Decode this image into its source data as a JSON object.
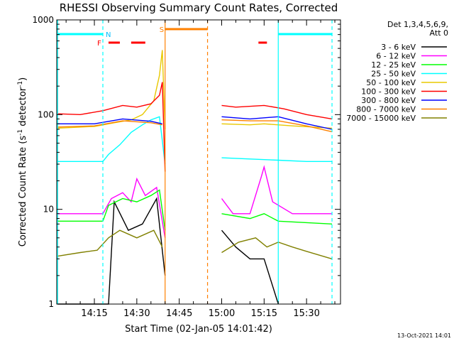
{
  "chart_data": {
    "type": "line",
    "title": "RHESSI Observing Summary Count Rates, Corrected",
    "xlabel": "Start Time (02-Jan-05 14:01:42)",
    "ylabel": "Corrected Count Rate (s⁻¹ detector⁻¹)",
    "ylabel_main": "Corrected Count Rate (s",
    "ylabel_sup1": "-1",
    "ylabel_mid": " detector",
    "ylabel_sup2": "-1",
    "ylabel_end": ")",
    "footer": "13-Oct-2021 14:01",
    "yscale": "log",
    "ylim": [
      1,
      1000
    ],
    "xlim": [
      "14:01:42",
      "15:42:00"
    ],
    "x_ticks": [
      "14:15",
      "14:30",
      "14:45",
      "15:00",
      "15:15",
      "15:30"
    ],
    "y_ticks": [
      "1",
      "10",
      "100",
      "1000"
    ],
    "legend_header": [
      "Det 1,3,4,5,6,9,",
      "Att 0"
    ],
    "legend_placement": "top-right",
    "grid": false,
    "gaps": [
      [
        "14:40",
        "15:00"
      ]
    ],
    "series": [
      {
        "name": "3 - 6 keV",
        "color": "#000000",
        "x": [
          "14:02",
          "14:20",
          "14:22",
          "14:27",
          "14:32",
          "14:37",
          "14:40",
          "15:00",
          "15:05",
          "15:10",
          "15:15",
          "15:20"
        ],
        "y": [
          0,
          0,
          12,
          6,
          7,
          13,
          2,
          6,
          4,
          3,
          3,
          0
        ]
      },
      {
        "name": "6 - 12 keV",
        "color": "#ff00ff",
        "x": [
          "14:02",
          "14:18",
          "14:21",
          "14:25",
          "14:28",
          "14:30",
          "14:33",
          "14:37",
          "14:40",
          "15:00",
          "15:04",
          "15:10",
          "15:14",
          "15:15",
          "15:18",
          "15:25",
          "15:39"
        ],
        "y": [
          9,
          9,
          13,
          15,
          12,
          21,
          14,
          17,
          5,
          13,
          9,
          9,
          22,
          28,
          12,
          9,
          9
        ]
      },
      {
        "name": "12 - 25 keV",
        "color": "#00ff00",
        "x": [
          "14:02",
          "14:18",
          "14:20",
          "14:25",
          "14:30",
          "14:35",
          "14:38",
          "14:40",
          "15:00",
          "15:10",
          "15:15",
          "15:20",
          "15:39"
        ],
        "y": [
          7.5,
          7.5,
          11,
          13,
          12,
          14,
          16,
          6,
          9,
          8,
          9,
          7.5,
          7
        ]
      },
      {
        "name": "25 - 50 keV",
        "color": "#00ffff",
        "x": [
          "14:02",
          "14:18",
          "14:20",
          "14:24",
          "14:28",
          "14:32",
          "14:35",
          "14:38",
          "14:40",
          "15:00",
          "15:10",
          "15:20",
          "15:30",
          "15:39"
        ],
        "y": [
          32,
          32,
          38,
          48,
          65,
          78,
          88,
          95,
          30,
          35,
          34,
          33,
          32,
          32
        ]
      },
      {
        "name": "50 - 100 keV",
        "color": "#e8c800",
        "x": [
          "14:02",
          "14:15",
          "14:22",
          "14:28",
          "14:32",
          "14:36",
          "14:38",
          "14:39",
          "14:40",
          "15:00",
          "15:10",
          "15:15",
          "15:25",
          "15:39"
        ],
        "y": [
          72,
          75,
          82,
          88,
          100,
          140,
          260,
          480,
          70,
          80,
          78,
          80,
          76,
          72
        ]
      },
      {
        "name": "100 - 300 keV",
        "color": "#ff0000",
        "x": [
          "14:02",
          "14:10",
          "14:18",
          "14:25",
          "14:30",
          "14:35",
          "14:38",
          "14:39",
          "14:40",
          "15:00",
          "15:05",
          "15:15",
          "15:22",
          "15:30",
          "15:39"
        ],
        "y": [
          102,
          100,
          110,
          125,
          120,
          130,
          160,
          220,
          25,
          125,
          120,
          125,
          115,
          100,
          90
        ]
      },
      {
        "name": "300 - 800 keV",
        "color": "#0000ff",
        "x": [
          "14:02",
          "14:15",
          "14:25",
          "14:35",
          "14:39",
          "15:00",
          "15:10",
          "15:20",
          "15:30",
          "15:39"
        ],
        "y": [
          80,
          80,
          90,
          85,
          80,
          95,
          90,
          95,
          80,
          70
        ]
      },
      {
        "name": "800 - 7000 keV",
        "color": "#ff8000",
        "x": [
          "14:02",
          "14:15",
          "14:25",
          "14:35",
          "14:39",
          "15:00",
          "15:10",
          "15:20",
          "15:30",
          "15:39"
        ],
        "y": [
          74,
          76,
          86,
          82,
          78,
          88,
          86,
          86,
          76,
          66
        ]
      },
      {
        "name": "7000 - 15000 keV",
        "color": "#808000",
        "x": [
          "14:02",
          "14:10",
          "14:16",
          "14:20",
          "14:24",
          "14:30",
          "14:36",
          "14:39",
          "15:00",
          "15:06",
          "15:12",
          "15:16",
          "15:20",
          "15:25",
          "15:30",
          "15:39"
        ],
        "y": [
          3.2,
          3.5,
          3.7,
          5,
          6,
          5,
          6,
          4,
          3.5,
          4.5,
          5,
          4,
          4.5,
          4,
          3.6,
          3
        ]
      }
    ],
    "flag_labels": [
      {
        "text": "N",
        "color": "#00bfff"
      },
      {
        "text": "F",
        "color": "#ff0000"
      },
      {
        "text": "S",
        "color": "#ff8000"
      }
    ],
    "flag_bars": [
      {
        "color": "#00ffff",
        "x": [
          "14:02",
          "14:18"
        ]
      },
      {
        "color": "#00ffff",
        "x": [
          "15:20",
          "15:39"
        ]
      },
      {
        "color": "#ff0000",
        "x": [
          "14:20",
          "14:24"
        ]
      },
      {
        "color": "#ff0000",
        "x": [
          "14:28",
          "14:33"
        ]
      },
      {
        "color": "#ff0000",
        "x": [
          "15:13",
          "15:16"
        ]
      },
      {
        "color": "#ff8000",
        "x": [
          "14:40",
          "14:55"
        ]
      }
    ],
    "vertical_markers": [
      {
        "x": "14:02",
        "color": "#00ffff",
        "style": "solid"
      },
      {
        "x": "14:18",
        "color": "#00ffff",
        "style": "dashed"
      },
      {
        "x": "14:40",
        "color": "#ff8000",
        "style": "solid"
      },
      {
        "x": "14:55",
        "color": "#ff8000",
        "style": "dashed"
      },
      {
        "x": "15:20",
        "color": "#00ffff",
        "style": "solid"
      },
      {
        "x": "15:39",
        "color": "#00ffff",
        "style": "dashed"
      }
    ]
  }
}
